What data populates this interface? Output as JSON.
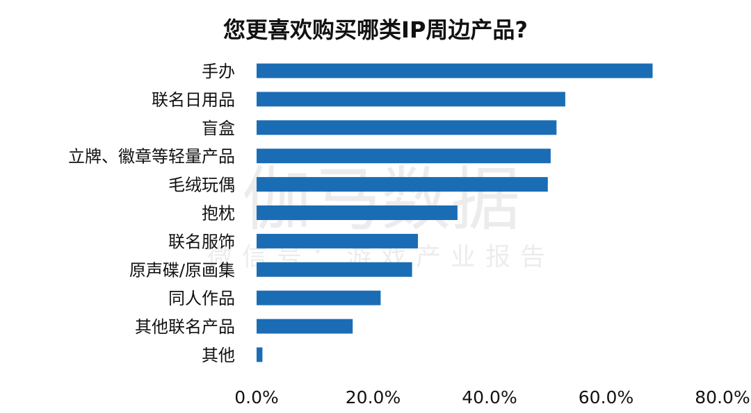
{
  "chart_data": {
    "type": "bar",
    "orientation": "horizontal",
    "title": "您更喜欢购买哪类IP周边产品?",
    "categories": [
      "手办",
      "联名日用品",
      "盲盒",
      "立牌、徽章等轻量产品",
      "毛绒玩偶",
      "抱枕",
      "联名服饰",
      "原声碟/原画集",
      "同人作品",
      "其他联名产品",
      "其他"
    ],
    "values": [
      68,
      53,
      51.5,
      50.5,
      50,
      34.5,
      27.7,
      26.7,
      21.3,
      16.5,
      1
    ],
    "xlim": [
      0,
      80
    ],
    "xticks": [
      "0.0%",
      "20.0%",
      "40.0%",
      "60.0%",
      "80.0%"
    ],
    "grid": false,
    "bar_color": "#1a6db5"
  },
  "watermark": {
    "main": "伽马数据",
    "sub": "微信号：游戏产业报告"
  }
}
